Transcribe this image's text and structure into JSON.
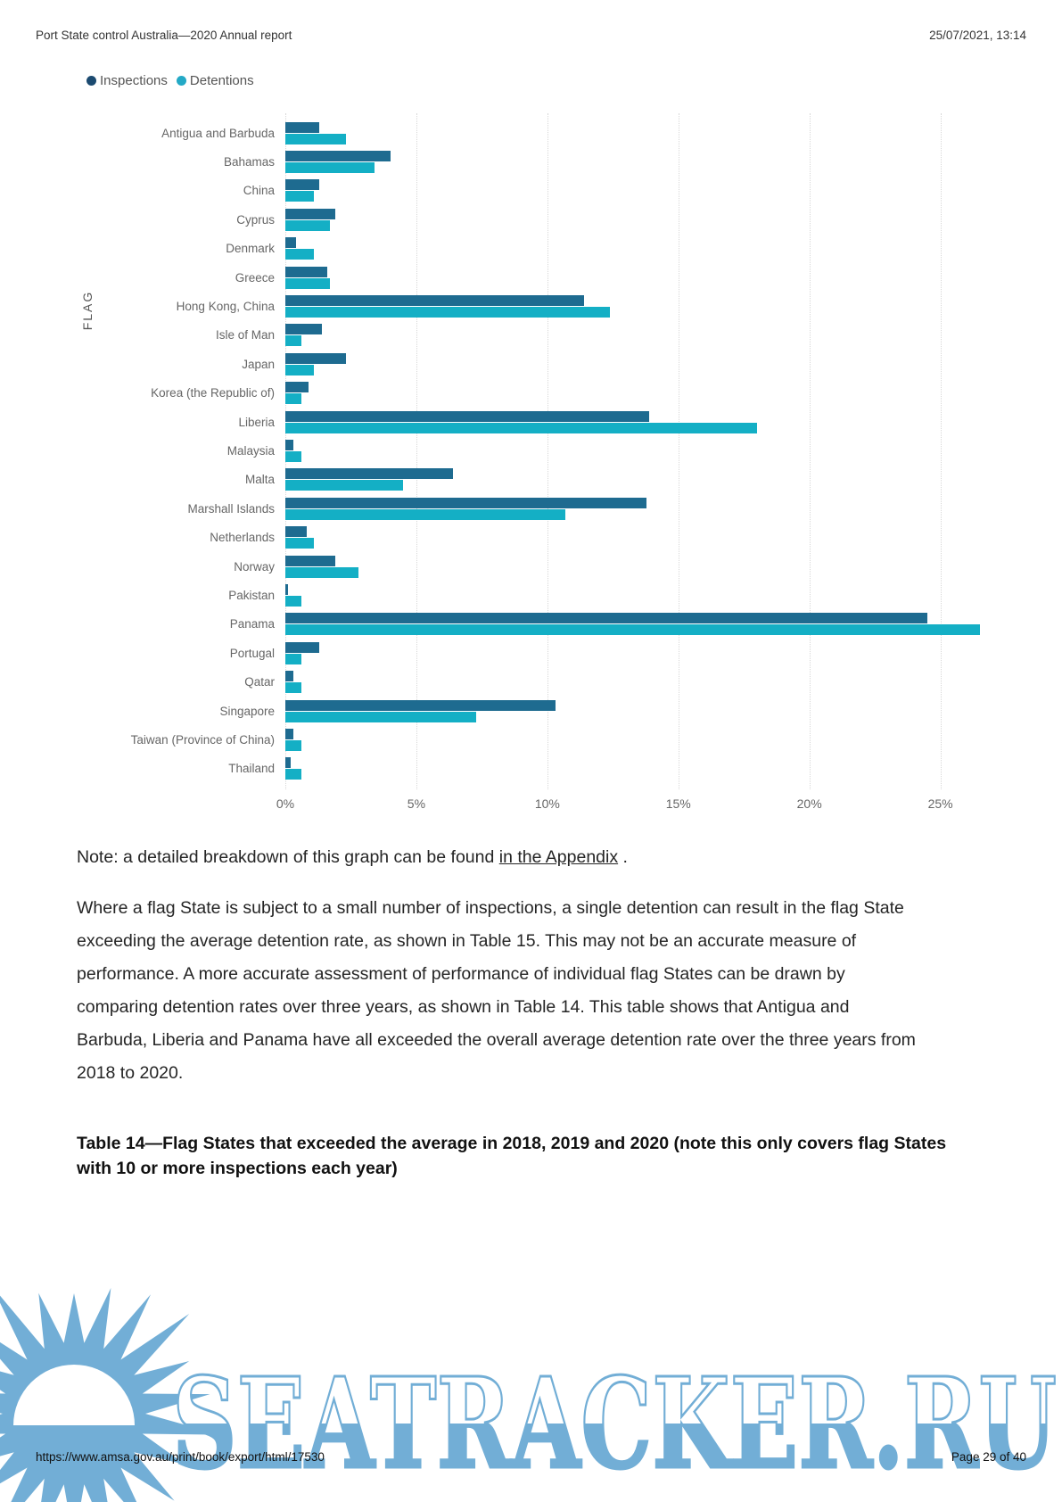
{
  "header": {
    "title": "Port State control Australia—2020 Annual report",
    "datetime": "25/07/2021, 13:14"
  },
  "legend": [
    {
      "label": "Inspections",
      "color": "#1b4a70"
    },
    {
      "label": "Detentions",
      "color": "#23a9c6"
    }
  ],
  "chart_data": {
    "type": "bar",
    "orientation": "horizontal",
    "title": "",
    "xlabel": "",
    "ylabel": "FLAG",
    "grid": "dotted-vertical",
    "legend_position": "top-left",
    "x_ticks": [
      "0%",
      "5%",
      "10%",
      "15%",
      "20%",
      "25%"
    ],
    "x_tick_values": [
      0,
      5,
      10,
      15,
      20,
      25
    ],
    "xlim": [
      0,
      26.75
    ],
    "categories": [
      "Antigua and Barbuda",
      "Bahamas",
      "China",
      "Cyprus",
      "Denmark",
      "Greece",
      "Hong Kong, China",
      "Isle of Man",
      "Japan",
      "Korea (the Republic of)",
      "Liberia",
      "Malaysia",
      "Malta",
      "Marshall Islands",
      "Netherlands",
      "Norway",
      "Pakistan",
      "Panama",
      "Portugal",
      "Qatar",
      "Singapore",
      "Taiwan (Province of China)",
      "Thailand"
    ],
    "series": [
      {
        "name": "Inspections",
        "color": "#1e6b90",
        "values": [
          1.3,
          4.0,
          1.3,
          1.9,
          0.4,
          1.6,
          11.4,
          1.4,
          2.3,
          0.9,
          13.9,
          0.3,
          6.4,
          13.8,
          0.8,
          1.9,
          0.1,
          24.5,
          1.3,
          0.3,
          10.3,
          0.3,
          0.2
        ]
      },
      {
        "name": "Detentions",
        "color": "#14afc5",
        "values": [
          2.3,
          3.4,
          1.1,
          1.7,
          1.1,
          1.7,
          12.4,
          0.6,
          1.1,
          0.6,
          18.0,
          0.6,
          4.5,
          10.7,
          1.1,
          2.8,
          0.6,
          26.5,
          0.6,
          0.6,
          7.3,
          0.6,
          0.6
        ]
      }
    ]
  },
  "note": {
    "prefix": "Note: a detailed breakdown of this graph can be found ",
    "link_text": "in the Appendix",
    "suffix": " ."
  },
  "paragraph": "Where a flag State is subject to a small number of inspections, a single detention can result in the flag State exceeding the average detention rate, as shown in Table 15. This may not be an accurate measure of performance. A more accurate assessment of performance of individual flag States can be drawn by comparing detention rates over three years, as shown in Table 14. This table shows that Antigua and Barbuda, Liberia and Panama have all exceeded the overall average detention rate over the three years from 2018 to 2020.",
  "table_heading": "Table 14—Flag States that exceeded the average in 2018, 2019 and 2020 (note this only covers flag States with 10 or more inspections each year)",
  "footer": {
    "url": "https://www.amsa.gov.au/print/book/export/html/17530",
    "page": "Page 29 of 40"
  },
  "watermark": {
    "text": "SEATRACKER.RU",
    "color": "#72aed6"
  }
}
